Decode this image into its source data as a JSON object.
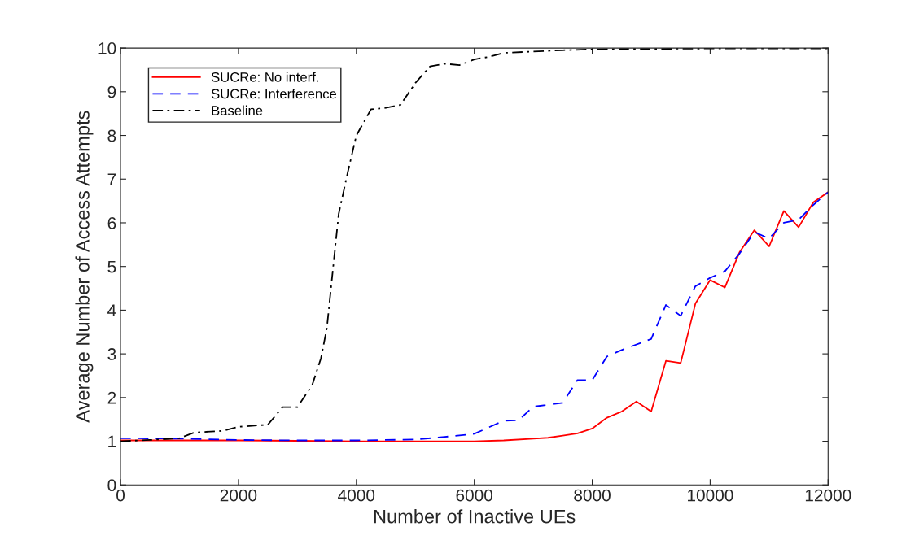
{
  "chart_data": {
    "type": "line",
    "xlabel": "Number of Inactive UEs",
    "ylabel": "Average Number of Access Attempts",
    "xlim": [
      0,
      12000
    ],
    "ylim": [
      0,
      10
    ],
    "xticks": [
      0,
      2000,
      4000,
      6000,
      8000,
      10000,
      12000
    ],
    "yticks": [
      0,
      1,
      2,
      3,
      4,
      5,
      6,
      7,
      8,
      9,
      10
    ],
    "grid": false,
    "legend": "top left",
    "series": [
      {
        "name": "SUCRe: No interf.",
        "color": "#ff0000",
        "line_style": "solid",
        "x": [
          0,
          1000,
          2000,
          3000,
          4000,
          5000,
          6000,
          6500,
          7000,
          7250,
          7500,
          7750,
          8000,
          8250,
          8500,
          8750,
          9000,
          9250,
          9500,
          9750,
          10000,
          10250,
          10500,
          10750,
          11000,
          11250,
          11500,
          11750,
          12000
        ],
        "values": [
          1.02,
          1.02,
          1.02,
          1.01,
          1.0,
          1.0,
          1.0,
          1.02,
          1.06,
          1.08,
          1.13,
          1.18,
          1.29,
          1.54,
          1.68,
          1.91,
          1.68,
          2.84,
          2.79,
          4.15,
          4.69,
          4.52,
          5.33,
          5.83,
          5.46,
          6.27,
          5.9,
          6.47,
          6.7
        ]
      },
      {
        "name": "SUCRe: Interference",
        "color": "#0000ff",
        "line_style": "dashed",
        "x": [
          0,
          1000,
          2000,
          3000,
          4000,
          5000,
          5500,
          6000,
          6500,
          6750,
          7000,
          7500,
          7750,
          8000,
          8250,
          8500,
          9000,
          9250,
          9500,
          9750,
          10000,
          10250,
          10500,
          10750,
          11000,
          11250,
          11500,
          11750,
          12000
        ],
        "values": [
          1.07,
          1.06,
          1.03,
          1.02,
          1.02,
          1.04,
          1.1,
          1.17,
          1.47,
          1.48,
          1.79,
          1.88,
          2.4,
          2.4,
          2.94,
          3.09,
          3.34,
          4.12,
          3.87,
          4.55,
          4.74,
          4.89,
          5.3,
          5.79,
          5.64,
          6.0,
          6.07,
          6.41,
          6.7
        ]
      },
      {
        "name": "Baseline",
        "color": "#000000",
        "line_style": "dashdot",
        "x": [
          0,
          500,
          1000,
          1250,
          1750,
          2000,
          2500,
          2750,
          3000,
          3250,
          3400,
          3500,
          3600,
          3700,
          3850,
          4000,
          4250,
          4500,
          4750,
          5000,
          5250,
          5500,
          5750,
          6000,
          6250,
          6500,
          7000,
          7500,
          8000,
          8500,
          9000,
          10000,
          11000,
          12000
        ],
        "values": [
          1.0,
          1.03,
          1.07,
          1.2,
          1.24,
          1.33,
          1.38,
          1.78,
          1.78,
          2.28,
          2.9,
          3.59,
          4.9,
          6.2,
          7.13,
          8.0,
          8.6,
          8.63,
          8.7,
          9.2,
          9.58,
          9.64,
          9.61,
          9.74,
          9.8,
          9.89,
          9.92,
          9.95,
          9.97,
          9.98,
          9.98,
          9.99,
          9.99,
          9.99
        ]
      }
    ]
  }
}
